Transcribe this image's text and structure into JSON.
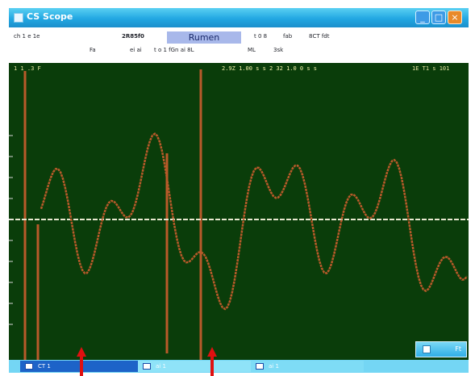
{
  "window": {
    "title": "CS Scope",
    "minimize_label": "_",
    "maximize_label": "□",
    "close_label": "×",
    "titlebar_color": "#22a7e2"
  },
  "info_panel": {
    "left_text": "ch 1 e 1e",
    "mid_text": "2R85f0",
    "mode_badge": "Rumen",
    "right_text_1": "t 0 8",
    "right_text_2": "fab",
    "right_text_3": "8CT fdt",
    "row2_text_1": "Fa",
    "row2_text_2": "ei ai",
    "row2_text_3": "t o 1 fGn ai 8L",
    "row2_text_4": "ML",
    "row2_text_5": "3sk"
  },
  "plot": {
    "top_left_readout": "1 1 .3 F",
    "top_center_readout": "2.9Z 1.00 s s 2 32 1.0 0 s s",
    "top_right_readout": "1E T1 s 101",
    "trace_color": "#b85a2a",
    "baseline_color": "#e8e8d0",
    "background_color": "#0a3d0a",
    "corner_button_label": "Ft"
  },
  "taskbar": {
    "tab_1_label": "CT 1",
    "tab_2_label": "ai 1",
    "tab_3_label": "ai 1"
  },
  "annotations": {
    "arrow_color": "#e01010"
  }
}
